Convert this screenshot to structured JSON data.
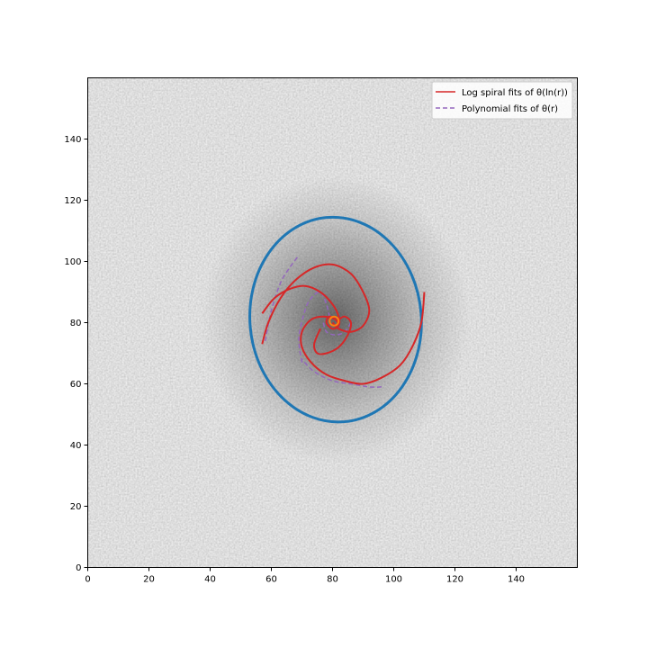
{
  "chart_data": {
    "type": "scatter",
    "title": "",
    "xlabel": "",
    "ylabel": "",
    "xlim": [
      0,
      160
    ],
    "ylim": [
      0,
      160
    ],
    "xticks": [
      "0",
      "20",
      "40",
      "60",
      "80",
      "100",
      "120",
      "140"
    ],
    "yticks": [
      "0",
      "20",
      "40",
      "60",
      "80",
      "100",
      "120",
      "140"
    ],
    "grid": false,
    "background": "grayscale galaxy image",
    "legend": {
      "placement": "top-right",
      "entries": [
        {
          "label": "Log spiral fits of θ(ln(r))",
          "color": "#d62728",
          "style": "solid"
        },
        {
          "label": "Polynomial fits of θ(r)",
          "color": "#9467bd",
          "style": "dashed"
        }
      ]
    },
    "ellipse": {
      "color": "#1f77b4",
      "center": [
        81,
        81
      ],
      "semi_axes": [
        28,
        33.5
      ],
      "rotation_deg": -5
    },
    "log_spiral_fits": [
      {
        "x": [
          110,
          109,
          106,
          102,
          96,
          90,
          84,
          78,
          73,
          70,
          70,
          73,
          77,
          81,
          82
        ],
        "y": [
          90,
          80,
          72,
          66,
          62,
          60,
          61,
          63,
          67,
          72,
          77,
          81,
          82,
          81,
          79
        ]
      },
      {
        "x": [
          57,
          59,
          63,
          68,
          74,
          80,
          86,
          90,
          92,
          90,
          86,
          82,
          80
        ],
        "y": [
          73,
          80,
          88,
          94,
          98,
          99,
          96,
          90,
          84,
          79,
          77,
          78,
          80
        ]
      },
      {
        "x": [
          57,
          61,
          66,
          71,
          76,
          80,
          82,
          82,
          80,
          78,
          79,
          81
        ],
        "y": [
          83,
          88,
          91,
          92,
          90,
          86,
          82,
          79,
          78,
          80,
          82,
          81
        ]
      },
      {
        "x": [
          76,
          74,
          75,
          78,
          82,
          85,
          86,
          84,
          82
        ],
        "y": [
          78,
          73,
          70,
          70,
          72,
          76,
          80,
          82,
          81
        ]
      }
    ],
    "polynomial_fits": [
      {
        "x": [
          58,
          60,
          63,
          66,
          69
        ],
        "y": [
          74,
          84,
          93,
          98,
          102
        ]
      },
      {
        "x": [
          96,
          92,
          86,
          80,
          74,
          70
        ],
        "y": [
          59,
          59,
          60,
          61,
          64,
          68
        ]
      },
      {
        "x": [
          70,
          69,
          71,
          73,
          76,
          78,
          79
        ],
        "y": [
          67,
          75,
          84,
          88,
          90,
          86,
          82
        ]
      },
      {
        "x": [
          77,
          78,
          81,
          84,
          86
        ],
        "y": [
          80,
          77,
          76,
          77,
          80
        ]
      }
    ]
  }
}
